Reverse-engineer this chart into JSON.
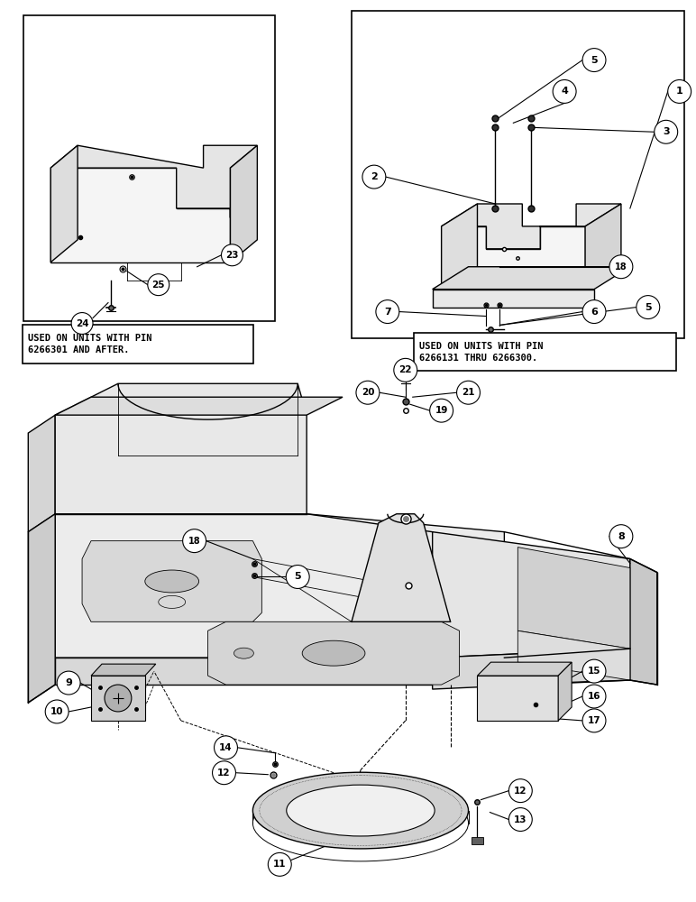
{
  "bg_color": "#ffffff",
  "line_color": "#000000",
  "fig_width": 7.72,
  "fig_height": 10.0,
  "label_box1_text": "USED ON UNITS WITH PIN\n6266301 AND AFTER.",
  "label_box2_text": "USED ON UNITS WITH PIN\n6266131 THRU 6266300."
}
